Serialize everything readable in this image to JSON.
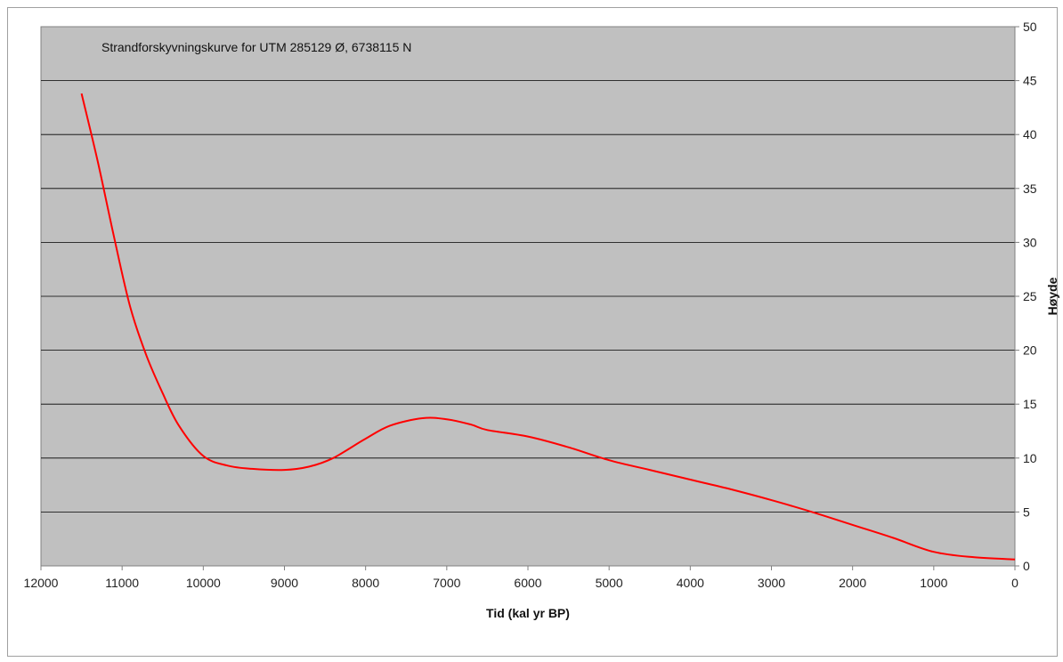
{
  "chart_data": {
    "type": "line",
    "annotation": "Strandforskyvningskurve for UTM 285129 Ø, 6738115 N",
    "xlabel": "Tid (kal yr BP)",
    "ylabel": "Høyde",
    "xlim": [
      12000,
      0
    ],
    "ylim": [
      0,
      50
    ],
    "x_reversed": true,
    "x_ticks": [
      12000,
      11000,
      10000,
      9000,
      8000,
      7000,
      6000,
      5000,
      4000,
      3000,
      2000,
      1000,
      0
    ],
    "y_ticks": [
      0,
      5,
      10,
      15,
      20,
      25,
      30,
      35,
      40,
      45,
      50
    ],
    "y_axis_position": "right",
    "grid": "horizontal",
    "legend": "none",
    "series": [
      {
        "x": [
          11500,
          11300,
          11100,
          10900,
          10700,
          10500,
          10300,
          10000,
          9700,
          9400,
          9000,
          8700,
          8400,
          8000,
          7700,
          7300,
          7000,
          6700,
          6500,
          6000,
          5500,
          5000,
          4500,
          4000,
          3500,
          3000,
          2500,
          2000,
          1500,
          1000,
          500,
          0
        ],
        "y": [
          43.8,
          37.5,
          30.5,
          24,
          19.5,
          16,
          13,
          10.2,
          9.3,
          9.0,
          8.9,
          9.2,
          10,
          11.8,
          13,
          13.7,
          13.6,
          13.1,
          12.6,
          12,
          11,
          9.8,
          8.9,
          8.0,
          7.1,
          6.1,
          5.0,
          3.8,
          2.6,
          1.3,
          0.8,
          0.6
        ]
      }
    ],
    "colors": {
      "plot_background": "#c0c0c0",
      "line": "#ff0000",
      "gridline": "#000000"
    }
  }
}
